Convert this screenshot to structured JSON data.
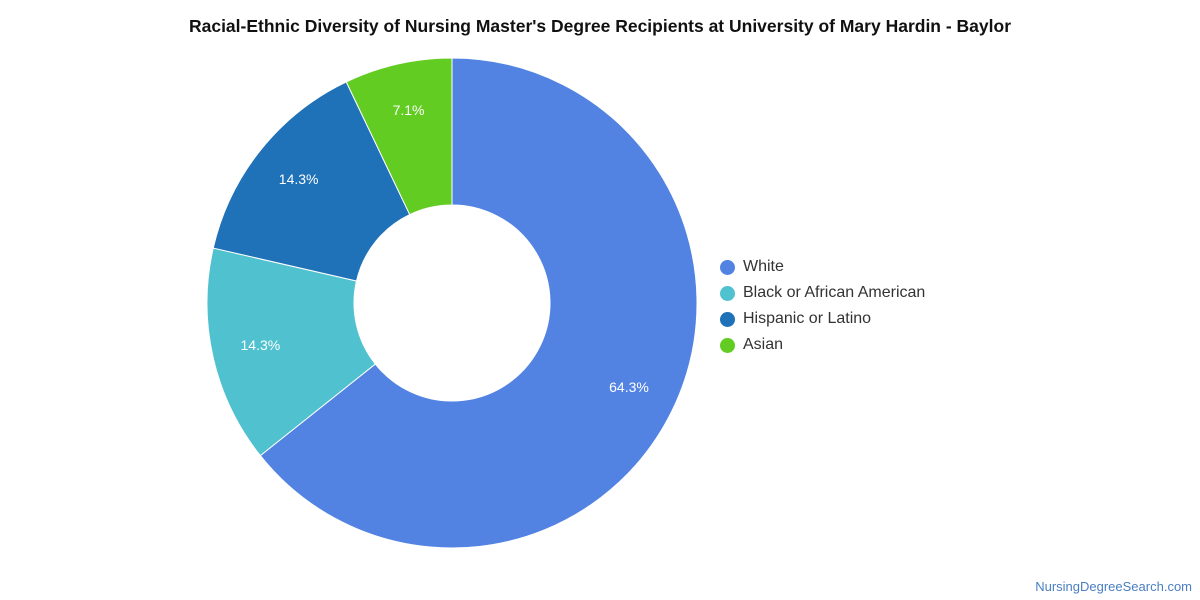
{
  "chart_data": {
    "type": "pie",
    "title": "Racial-Ethnic Diversity of Nursing Master's Degree Recipients at University of Mary Hardin - Baylor",
    "donut": true,
    "legend_position": "right",
    "slices": [
      {
        "label": "White",
        "value": 64.3,
        "display": "64.3%",
        "color": "#5283e3"
      },
      {
        "label": "Black or African American",
        "value": 14.3,
        "display": "14.3%",
        "color": "#50c1ce"
      },
      {
        "label": "Hispanic or Latino",
        "value": 14.3,
        "display": "14.3%",
        "color": "#1f71b8"
      },
      {
        "label": "Asian",
        "value": 7.1,
        "display": "7.1%",
        "color": "#62cc23"
      }
    ]
  },
  "footer": {
    "credit": "NursingDegreeSearch.com"
  }
}
